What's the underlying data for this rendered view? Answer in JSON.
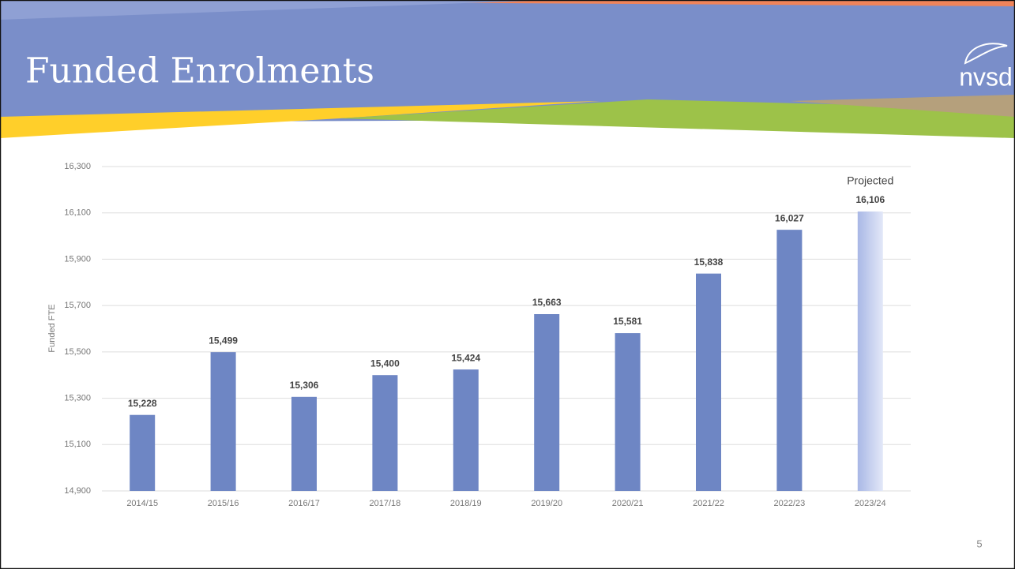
{
  "title": "Funded Enrolments",
  "logo": "nvsd",
  "page_number": "5",
  "chart_data": {
    "type": "bar",
    "categories": [
      "2014/15",
      "2015/16",
      "2016/17",
      "2017/18",
      "2018/19",
      "2019/20",
      "2020/21",
      "2021/22",
      "2022/23",
      "2023/24"
    ],
    "values": [
      15228,
      15499,
      15306,
      15400,
      15424,
      15663,
      15581,
      15838,
      16027,
      16106
    ],
    "value_labels": [
      "15,228",
      "15,499",
      "15,306",
      "15,400",
      "15,424",
      "15,663",
      "15,581",
      "15,838",
      "16,027",
      "16,106"
    ],
    "colors": [
      "#6e86c4",
      "#6e86c4",
      "#6e86c4",
      "#6e86c4",
      "#6e86c4",
      "#6e86c4",
      "#6e86c4",
      "#6e86c4",
      "#6e86c4",
      "#b3c0ea"
    ],
    "ylabel": "Funded FTE",
    "annotation": "Projected",
    "ylim": [
      14900,
      16300
    ],
    "yticks": [
      {
        "value": 14900,
        "label": "14,900"
      },
      {
        "value": 15100,
        "label": "15,100"
      },
      {
        "value": 15300,
        "label": "15,300"
      },
      {
        "value": 15500,
        "label": "15,500"
      },
      {
        "value": 15700,
        "label": "15,700"
      },
      {
        "value": 15900,
        "label": "15,900"
      },
      {
        "value": 16100,
        "label": "16,100"
      },
      {
        "value": 16300,
        "label": "16,300"
      }
    ],
    "grid": true
  }
}
